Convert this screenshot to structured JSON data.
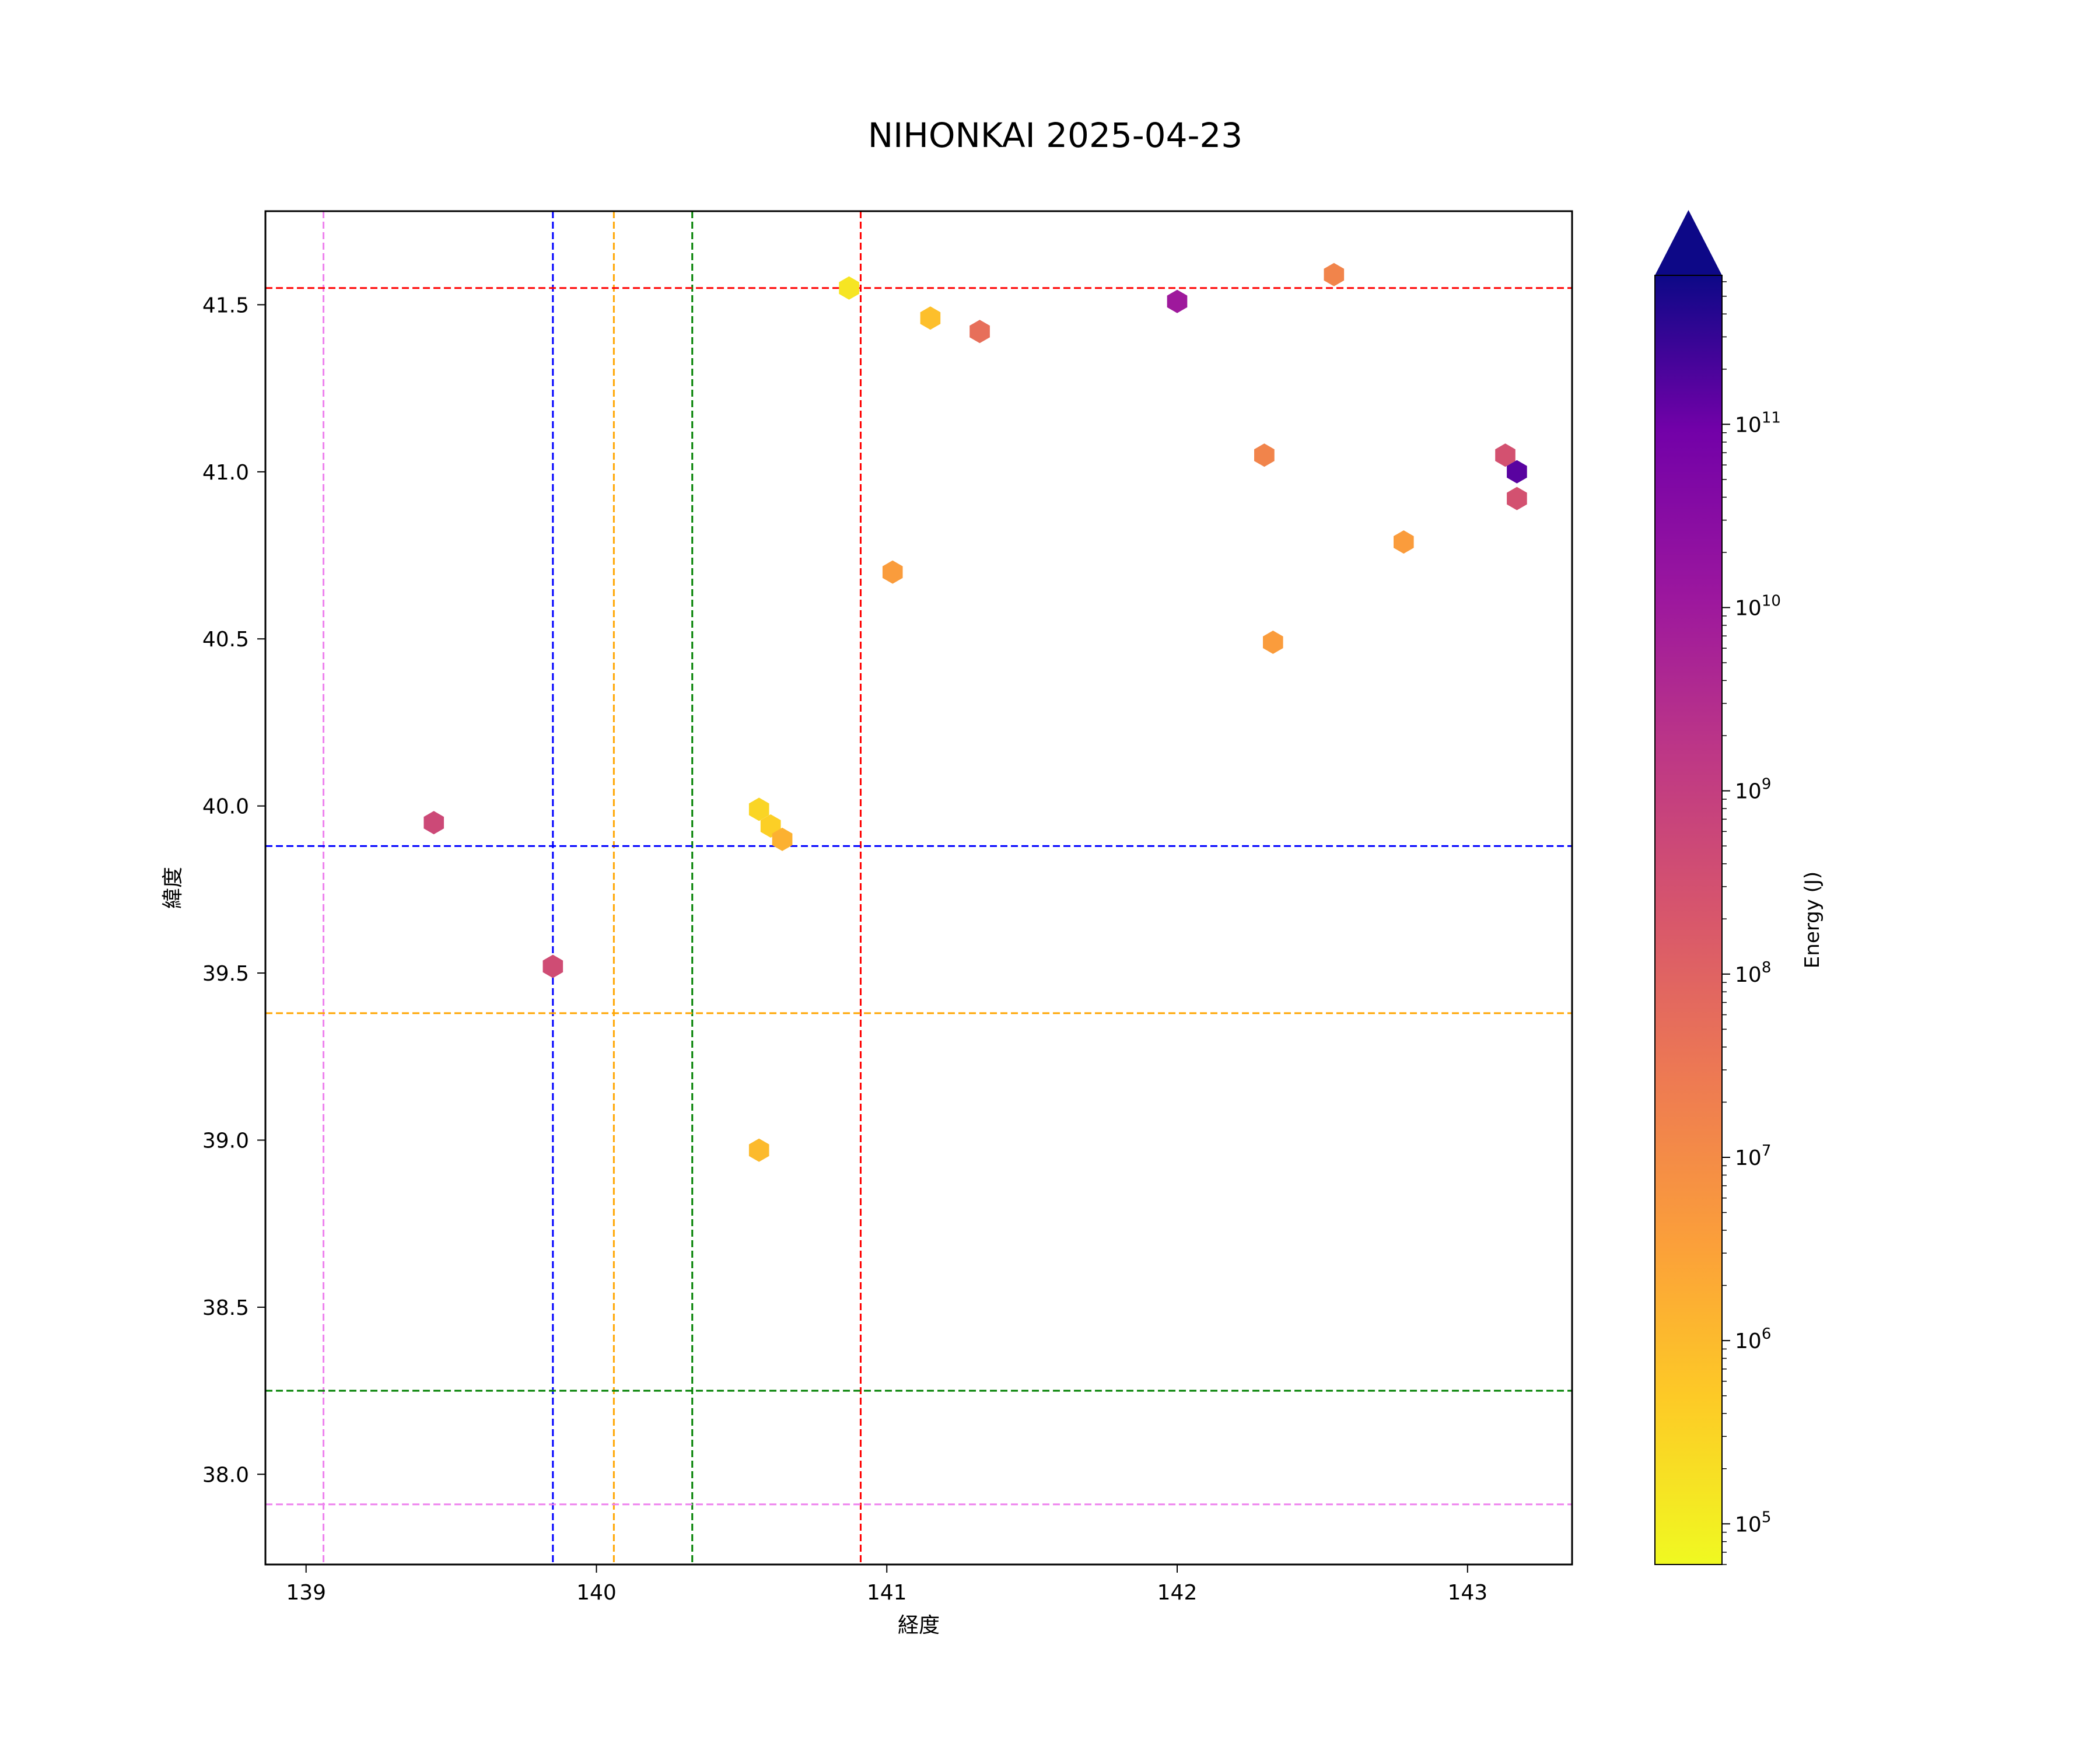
{
  "chart_data": {
    "type": "hexbin",
    "title": "NIHONKAI 2025-04-23",
    "xlabel": "経度",
    "ylabel": "緯度",
    "xlim": [
      138.86,
      143.36
    ],
    "ylim": [
      37.73,
      41.78
    ],
    "xticks": [
      139,
      140,
      141,
      142,
      143
    ],
    "xtick_labels": [
      "139",
      "140",
      "141",
      "142",
      "143"
    ],
    "yticks": [
      38.0,
      38.5,
      39.0,
      39.5,
      40.0,
      40.5,
      41.0,
      41.5
    ],
    "ytick_labels": [
      "38.0",
      "38.5",
      "39.0",
      "39.5",
      "40.0",
      "40.5",
      "41.0",
      "41.5"
    ],
    "grid": false,
    "colormap": "plasma_r",
    "colorbar": {
      "label": "Energy (J)",
      "scale": "log",
      "range": [
        60000,
        650000000000
      ],
      "extend": "max",
      "ticks": [
        {
          "exp": 5,
          "base": "10",
          "sup": "5"
        },
        {
          "exp": 6,
          "base": "10",
          "sup": "6"
        },
        {
          "exp": 7,
          "base": "10",
          "sup": "7"
        },
        {
          "exp": 8,
          "base": "10",
          "sup": "8"
        },
        {
          "exp": 9,
          "base": "10",
          "sup": "9"
        },
        {
          "exp": 10,
          "base": "10",
          "sup": "10"
        },
        {
          "exp": 11,
          "base": "10",
          "sup": "11"
        }
      ]
    },
    "reference_lines": {
      "vertical": [
        {
          "x": 139.06,
          "color": "#ee82ee"
        },
        {
          "x": 139.85,
          "color": "#0000ff"
        },
        {
          "x": 140.06,
          "color": "#ffa500"
        },
        {
          "x": 140.33,
          "color": "#008000"
        },
        {
          "x": 140.91,
          "color": "#ff0000"
        }
      ],
      "horizontal": [
        {
          "y": 41.55,
          "color": "#ff0000"
        },
        {
          "y": 39.88,
          "color": "#0000ff"
        },
        {
          "y": 39.38,
          "color": "#ffa500"
        },
        {
          "y": 38.25,
          "color": "#008000"
        },
        {
          "y": 37.91,
          "color": "#ee82ee"
        }
      ]
    },
    "points": [
      {
        "lon": 139.44,
        "lat": 39.95,
        "energy": 500000000
      },
      {
        "lon": 139.85,
        "lat": 39.52,
        "energy": 400000000
      },
      {
        "lon": 140.56,
        "lat": 39.99,
        "energy": 300000
      },
      {
        "lon": 140.6,
        "lat": 39.94,
        "energy": 400000
      },
      {
        "lon": 140.64,
        "lat": 39.9,
        "energy": 1500000
      },
      {
        "lon": 140.56,
        "lat": 38.97,
        "energy": 1000000
      },
      {
        "lon": 140.87,
        "lat": 41.55,
        "energy": 150000
      },
      {
        "lon": 141.02,
        "lat": 40.7,
        "energy": 4000000
      },
      {
        "lon": 141.15,
        "lat": 41.46,
        "energy": 800000
      },
      {
        "lon": 141.32,
        "lat": 41.42,
        "energy": 50000000
      },
      {
        "lon": 142.0,
        "lat": 41.51,
        "energy": 10000000000
      },
      {
        "lon": 142.3,
        "lat": 41.05,
        "energy": 15000000
      },
      {
        "lon": 142.33,
        "lat": 40.49,
        "energy": 4000000
      },
      {
        "lon": 142.54,
        "lat": 41.59,
        "energy": 15000000
      },
      {
        "lon": 142.78,
        "lat": 40.79,
        "energy": 4000000
      },
      {
        "lon": 143.13,
        "lat": 41.05,
        "energy": 300000000
      },
      {
        "lon": 143.17,
        "lat": 40.92,
        "energy": 300000000
      },
      {
        "lon": 143.17,
        "lat": 41.0,
        "energy": 150000000000
      }
    ]
  }
}
